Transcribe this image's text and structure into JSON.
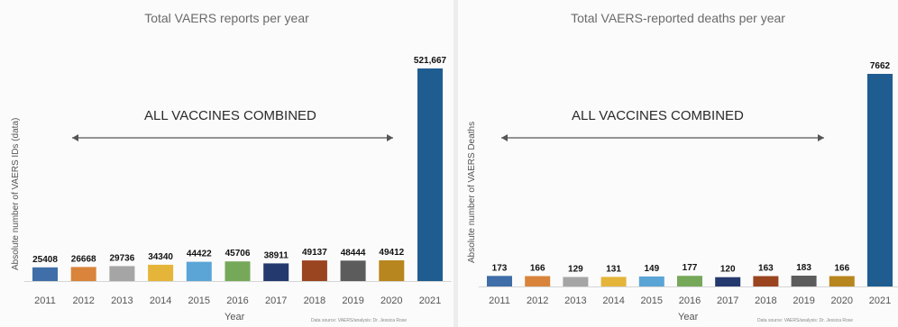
{
  "chart_data": [
    {
      "type": "bar",
      "title": "Total VAERS reports per year",
      "xlabel": "Year",
      "ylabel": "Absolute number of VAERS IDs (data)",
      "annotation": "ALL VACCINES COMBINED",
      "source": "Data source: VAERS/analysis: Dr. Jessica Rose",
      "categories": [
        "2011",
        "2012",
        "2013",
        "2014",
        "2015",
        "2016",
        "2017",
        "2018",
        "2019",
        "2020",
        "2021"
      ],
      "value_labels": [
        "25408",
        "26668",
        "29736",
        "34340",
        "44422",
        "45706",
        "38911",
        "49137",
        "48444",
        "49412",
        "521,667"
      ],
      "values": [
        25408,
        26668,
        29736,
        34340,
        44422,
        45706,
        38911,
        49137,
        48444,
        49412,
        521667
      ],
      "colors": [
        "#3f6ea8",
        "#d9843a",
        "#a5a5a5",
        "#e5b53a",
        "#5aa5d6",
        "#76a85a",
        "#24396e",
        "#9a4420",
        "#5c5c5c",
        "#b8861e",
        "#1f5d91"
      ],
      "ylim": [
        0,
        521667
      ],
      "grid": false,
      "legend": "none"
    },
    {
      "type": "bar",
      "title": "Total VAERS-reported deaths per year",
      "xlabel": "Year",
      "ylabel": "Absolute number of VAERS Deaths",
      "annotation": "ALL VACCINES COMBINED",
      "source": "Data source: VAERS/analysis: Dr. Jessica Rose",
      "categories": [
        "2011",
        "2012",
        "2013",
        "2014",
        "2015",
        "2016",
        "2017",
        "2018",
        "2019",
        "2020",
        "2021"
      ],
      "value_labels": [
        "173",
        "166",
        "129",
        "131",
        "149",
        "177",
        "120",
        "163",
        "183",
        "166",
        "7662"
      ],
      "values": [
        173,
        166,
        129,
        131,
        149,
        177,
        120,
        163,
        183,
        166,
        7662
      ],
      "colors": [
        "#3f6ea8",
        "#d9843a",
        "#a5a5a5",
        "#e5b53a",
        "#5aa5d6",
        "#76a85a",
        "#24396e",
        "#9a4420",
        "#5c5c5c",
        "#b8861e",
        "#1f5d91"
      ],
      "ylim": [
        0,
        7662
      ],
      "grid": false,
      "legend": "none"
    }
  ]
}
